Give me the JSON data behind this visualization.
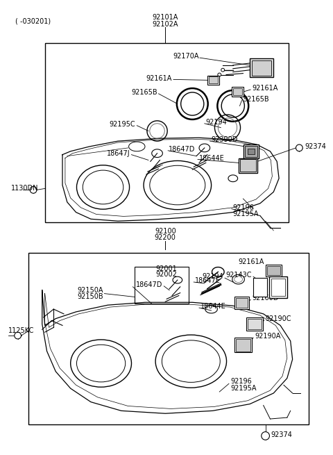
{
  "bg_color": "#ffffff",
  "fig_width": 4.8,
  "fig_height": 6.55,
  "dpi": 100,
  "top_label1": "( -030201)",
  "top_label2": "92101A",
  "top_label3": "92102A",
  "mid_label1": "92100",
  "mid_label2": "92200",
  "text_color": "#000000",
  "line_color": "#000000"
}
